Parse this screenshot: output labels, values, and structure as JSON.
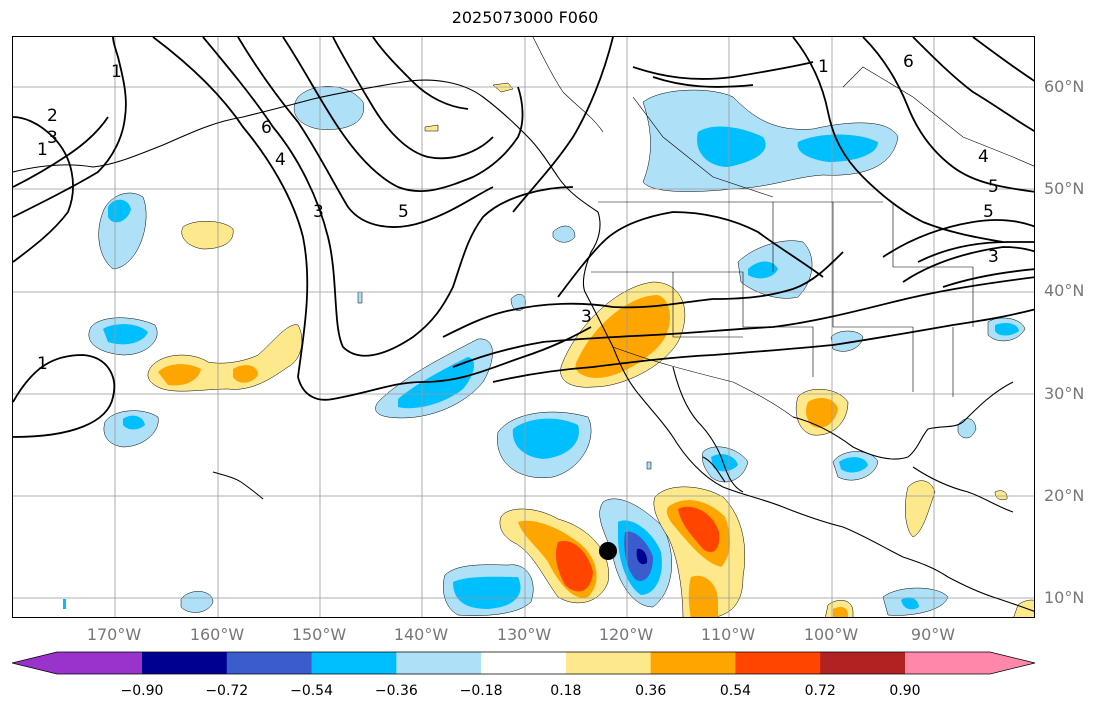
{
  "title": "2025073000 F060",
  "lat_labels": [
    "60°N",
    "50°N",
    "40°N",
    "30°N",
    "20°N",
    "10°N"
  ],
  "lon_labels": [
    "170°W",
    "160°W",
    "150°W",
    "140°W",
    "130°W",
    "120°W",
    "110°W",
    "100°W",
    "90°W"
  ],
  "colorbar": {
    "ticks": [
      "−0.90",
      "−0.72",
      "−0.54",
      "−0.36",
      "−0.18",
      "0.18",
      "0.36",
      "0.54",
      "0.72",
      "0.90"
    ],
    "colors": [
      "#9933cc",
      "#000090",
      "#3a5ccc",
      "#00bfff",
      "#aee0f8",
      "#ffffff",
      "#fde98b",
      "#ffa500",
      "#ff4500",
      "#b22222",
      "#ff88aa"
    ]
  },
  "contour_labels": [
    "1",
    "2",
    "3",
    "1",
    "4",
    "5",
    "6",
    "3",
    "5",
    "3",
    "1",
    "6",
    "5",
    "4",
    "3",
    "1"
  ],
  "map": {
    "projection": "cylindrical",
    "lon_range": [
      -180,
      -80
    ],
    "lat_range": [
      8,
      65
    ],
    "marker": "storm-center-dot"
  }
}
